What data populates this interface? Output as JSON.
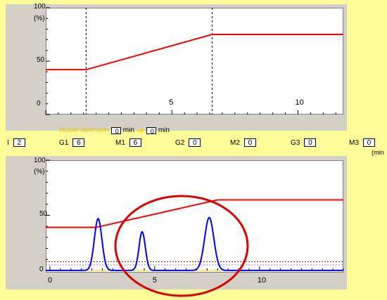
{
  "top_chart": {
    "y_unit": "(%)",
    "y_ticks": [
      {
        "value": 100,
        "label": "100"
      },
      {
        "value": 50,
        "label": "50"
      },
      {
        "value": 0,
        "label": "0"
      }
    ],
    "x_ticks": [
      {
        "value": 5,
        "label": "5"
      },
      {
        "value": 10,
        "label": "10"
      }
    ],
    "ylim": [
      0,
      100
    ],
    "xlim": [
      0,
      11.8
    ],
    "dashed_verticals": [
      1.6,
      6.6
    ],
    "gradient_line_color": "#ff0000",
    "gradient_points": [
      [
        0,
        42
      ],
      [
        1.6,
        42
      ],
      [
        6.6,
        75
      ],
      [
        11.8,
        75
      ]
    ]
  },
  "waste_diversion": {
    "label": "Waste diversion",
    "start_value": "0",
    "start_unit": "min",
    "end_value": "0",
    "end_unit": "min",
    "arrow": "arrow-right-icon"
  },
  "program_params": [
    {
      "label": "I",
      "value": "2"
    },
    {
      "label": "G1",
      "value": "6"
    },
    {
      "label": "M1",
      "value": "6"
    },
    {
      "label": "G2",
      "value": "0"
    },
    {
      "label": "M2",
      "value": "0"
    },
    {
      "label": "G3",
      "value": "0"
    },
    {
      "label": "M3",
      "value": "0"
    }
  ],
  "params_unit": "(min",
  "chart_data": {
    "type": "line",
    "y_unit": "(%)",
    "y_ticks": [
      {
        "value": 100,
        "label": "100"
      },
      {
        "value": 50,
        "label": "50"
      },
      {
        "value": 0,
        "label": "0"
      }
    ],
    "x_ticks": [
      {
        "value": 0,
        "label": "0"
      },
      {
        "value": 5,
        "label": "5"
      },
      {
        "value": 10,
        "label": "10"
      }
    ],
    "xlim": [
      -0.2,
      14
    ],
    "ylim": [
      -2,
      100
    ],
    "series": [
      {
        "color": "#ff0000",
        "points": [
          [
            -0.2,
            39
          ],
          [
            2.2,
            39
          ],
          [
            8.0,
            64
          ],
          [
            14,
            64
          ]
        ]
      },
      {
        "color": "#0000ff",
        "peaks": [
          {
            "center": 2.3,
            "height": 47,
            "width": 0.18
          },
          {
            "center": 4.4,
            "height": 35,
            "width": 0.15
          },
          {
            "center": 7.6,
            "height": 48,
            "width": 0.22
          }
        ],
        "baseline": 0
      }
    ],
    "dashed_hlines": [
      {
        "y": 8,
        "color": "#c00000"
      },
      {
        "y": 5,
        "color": "#8080ff"
      }
    ],
    "axis_line_color": "#ffd000",
    "highlight_circle_color": "#e00000"
  }
}
